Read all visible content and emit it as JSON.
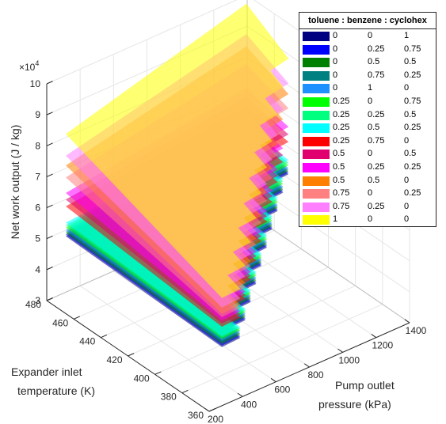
{
  "chart_data": {
    "type": "surface",
    "title": "",
    "xlabel": "Pump outlet pressure (kPa)",
    "xlabel_lines": [
      "Pump outlet",
      "pressure (kPa)"
    ],
    "ylabel": "Expander inlet temperature (K)",
    "ylabel_lines": [
      "Expander inlet",
      "temperature (K)"
    ],
    "zlabel": "Net work output (J / kg)",
    "z_multiplier": "×10",
    "z_exponent": "4",
    "x_ticks": [
      "200",
      "400",
      "600",
      "800",
      "1000",
      "1200",
      "1400"
    ],
    "y_ticks": [
      "360",
      "380",
      "400",
      "420",
      "440",
      "460",
      "480"
    ],
    "z_ticks": [
      "3",
      "4",
      "5",
      "6",
      "7",
      "8",
      "9",
      "10"
    ],
    "xlim": [
      200,
      1400
    ],
    "ylim": [
      360,
      480
    ],
    "zlim": [
      3,
      10
    ],
    "grid": true,
    "legend_position": "top-right",
    "legend_title": "toluene : benzene : cyclohex",
    "series": [
      {
        "v": [
          "0",
          "0",
          "1"
        ],
        "color": "#000080",
        "z_min": 4.75,
        "z_max": 5.0
      },
      {
        "v": [
          "0",
          "0.25",
          "0.75"
        ],
        "color": "#0000ff",
        "z_min": 4.8,
        "z_max": 5.05
      },
      {
        "v": [
          "0",
          "0.5",
          "0.5"
        ],
        "color": "#008000",
        "z_min": 4.85,
        "z_max": 5.1
      },
      {
        "v": [
          "0",
          "0.75",
          "0.25"
        ],
        "color": "#008080",
        "z_min": 4.9,
        "z_max": 5.15
      },
      {
        "v": [
          "0",
          "1",
          "0"
        ],
        "color": "#1e90ff",
        "z_min": 4.95,
        "z_max": 5.2
      },
      {
        "v": [
          "0.25",
          "0",
          "0.75"
        ],
        "color": "#00ff00",
        "z_min": 5.0,
        "z_max": 5.3
      },
      {
        "v": [
          "0.25",
          "0.25",
          "0.5"
        ],
        "color": "#00ff7f",
        "z_min": 5.05,
        "z_max": 5.4
      },
      {
        "v": [
          "0.25",
          "0.5",
          "0.25"
        ],
        "color": "#00ffff",
        "z_min": 5.1,
        "z_max": 5.5
      },
      {
        "v": [
          "0.25",
          "0.75",
          "0"
        ],
        "color": "#ff0000",
        "z_min": 5.4,
        "z_max": 6.2
      },
      {
        "v": [
          "0.5",
          "0",
          "0.5"
        ],
        "color": "#e0006e",
        "z_min": 5.5,
        "z_max": 6.5
      },
      {
        "v": [
          "0.5",
          "0.25",
          "0.25"
        ],
        "color": "#ff00ff",
        "z_min": 5.6,
        "z_max": 6.8
      },
      {
        "v": [
          "0.5",
          "0.5",
          "0"
        ],
        "color": "#ff8000",
        "z_min": 5.8,
        "z_max": 8.2
      },
      {
        "v": [
          "0.75",
          "0",
          "0.25"
        ],
        "color": "#ff8080",
        "z_min": 5.7,
        "z_max": 7.6
      },
      {
        "v": [
          "0.75",
          "0.25",
          "0"
        ],
        "color": "#ff80ff",
        "z_min": 6.0,
        "z_max": 8.6
      },
      {
        "v": [
          "1",
          "0",
          "0"
        ],
        "color": "#ffff00",
        "z_min": 6.3,
        "z_max": 9.6
      }
    ]
  }
}
